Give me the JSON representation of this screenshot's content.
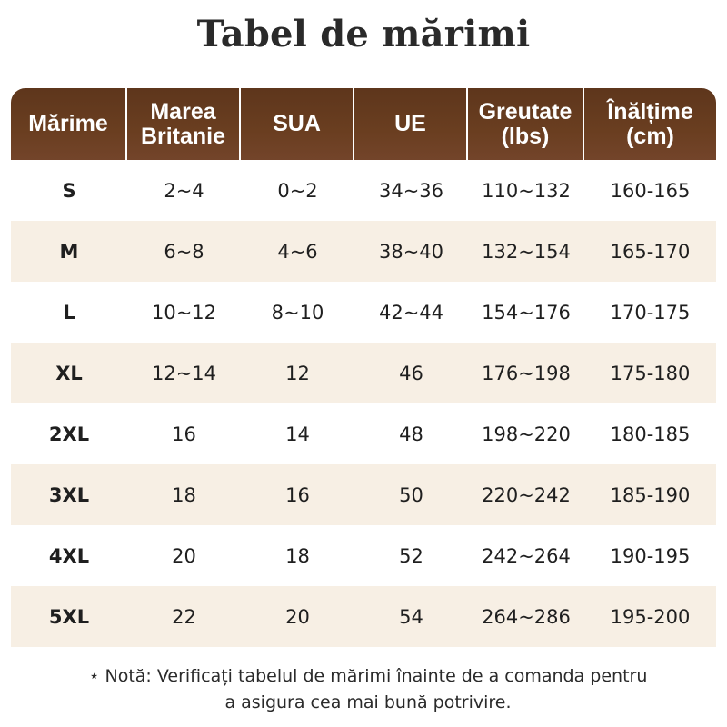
{
  "title": "Tabel de mărimi",
  "headers": [
    "Mărime",
    "Marea Britanie",
    "SUA",
    "UE",
    "Greutate (lbs)",
    "Înălțime (cm)"
  ],
  "header_lines": [
    [
      "Mărime"
    ],
    [
      "Marea",
      "Britanie"
    ],
    [
      "SUA"
    ],
    [
      "UE"
    ],
    [
      "Greutate",
      "(lbs)"
    ],
    [
      "Înălțime",
      "(cm)"
    ]
  ],
  "rows": [
    [
      "S",
      "2~4",
      "0~2",
      "34~36",
      "110~132",
      "160-165"
    ],
    [
      "M",
      "6~8",
      "4~6",
      "38~40",
      "132~154",
      "165-170"
    ],
    [
      "L",
      "10~12",
      "8~10",
      "42~44",
      "154~176",
      "170-175"
    ],
    [
      "XL",
      "12~14",
      "12",
      "46",
      "176~198",
      "175-180"
    ],
    [
      "2XL",
      "16",
      "14",
      "48",
      "198~220",
      "180-185"
    ],
    [
      "3XL",
      "18",
      "16",
      "50",
      "220~242",
      "185-190"
    ],
    [
      "4XL",
      "20",
      "18",
      "52",
      "242~264",
      "190-195"
    ],
    [
      "5XL",
      "22",
      "20",
      "54",
      "264~286",
      "195-200"
    ]
  ],
  "note": {
    "icon": "asterisk",
    "line1": "Notă: Verificați tabelul de mărimi înainte de a comanda pentru",
    "line2": "a asigura cea mai bună potrivire."
  },
  "colors": {
    "header_bg": "#6a3e20",
    "header_text": "#ffffff",
    "alt_row": "#f7efe4"
  }
}
